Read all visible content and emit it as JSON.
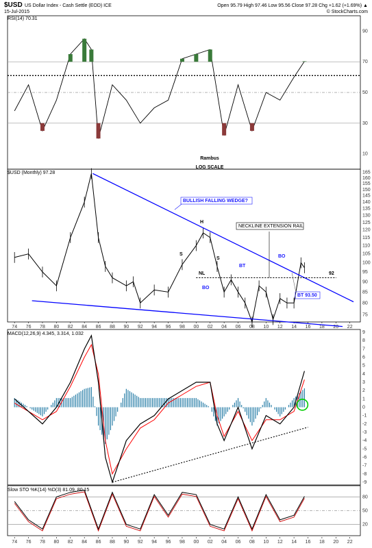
{
  "header": {
    "symbol": "$USD",
    "description": "US Dollar Index - Cash Settle (EOD) ICE",
    "date": "15-Jul-2015",
    "ohlc": "Open 95.79  High 97.46  Low 95.56  Close 97.28  Chg +1.62 (+1.69%) ▲",
    "watermark": "© StockCharts.com"
  },
  "panels": {
    "rsi": {
      "label": "RSI(14) 70.31",
      "yticks": [
        "90",
        "70",
        "50",
        "30",
        "10"
      ],
      "author": "Rambus",
      "scale_note": "LOG SCALE"
    },
    "price": {
      "label": "$USD (Monthly) 97.28",
      "yticks": [
        "165",
        "160",
        "155",
        "150",
        "145",
        "140",
        "135",
        "130",
        "125",
        "120",
        "115",
        "110",
        "105",
        "100",
        "95",
        "90",
        "85",
        "80",
        "75"
      ],
      "annotations": {
        "wedge": "BULLISH FALLING WEDGE?",
        "head": "H",
        "shoulder_left": "S",
        "shoulder_right": "S",
        "neckline": "NL",
        "neckline_rail": "NECKLINE EXTENSION RAIL",
        "bt1": "BT",
        "bo1": "BO",
        "bo2": "BO",
        "bt_price": "BT 93.50",
        "level": "92"
      }
    },
    "macd": {
      "label": "MACD(12,26,9) 4.345, 3.314, 1.032",
      "yticks": [
        "9",
        "8",
        "7",
        "6",
        "5",
        "4",
        "3",
        "2",
        "1",
        "0",
        "-1",
        "-2",
        "-3",
        "-4",
        "-5",
        "-6",
        "-7",
        "-8",
        "-9"
      ]
    },
    "sto": {
      "label": "Slow STO %K(14) %D(3) 81.09, 80.15",
      "yticks": [
        "80",
        "50",
        "20"
      ]
    }
  },
  "xaxis": {
    "labels": [
      "74",
      "76",
      "78",
      "80",
      "82",
      "84",
      "86",
      "88",
      "90",
      "92",
      "94",
      "96",
      "98",
      "00",
      "02",
      "04",
      "06",
      "08",
      "10",
      "12",
      "14",
      "16",
      "18",
      "20",
      "22"
    ]
  },
  "colors": {
    "price": "#000000",
    "wedge": "#0000ff",
    "rsi_fill": "#3a7a3a",
    "rsi_fill_low": "#8b3a3a",
    "macd_signal": "#ff0000",
    "histogram": "#2a7fa8",
    "sto_k": "#000000",
    "sto_d": "#cc0000",
    "circle": "#00cc00"
  },
  "chart_data": [
    {
      "type": "line",
      "title": "RSI(14)",
      "ylim": [
        0,
        100
      ],
      "reference_lines": [
        70,
        61,
        50,
        30
      ],
      "x": [
        1974,
        1976,
        1978,
        1980,
        1982,
        1984,
        1985,
        1986,
        1988,
        1990,
        1992,
        1994,
        1996,
        1998,
        2000,
        2002,
        2004,
        2006,
        2008,
        2010,
        2012,
        2014,
        2015.5
      ],
      "values": [
        38,
        55,
        25,
        45,
        75,
        85,
        78,
        20,
        55,
        45,
        30,
        40,
        45,
        72,
        75,
        78,
        22,
        55,
        25,
        50,
        45,
        60,
        70.31
      ]
    },
    {
      "type": "line",
      "title": "$USD (Monthly)",
      "log_scale": true,
      "ylim": [
        72,
        168
      ],
      "x": [
        1974,
        1976,
        1978,
        1980,
        1982,
        1984,
        1985,
        1986,
        1987,
        1988,
        1990,
        1991,
        1992,
        1994,
        1996,
        1998,
        2000,
        2001,
        2002,
        2003,
        2004,
        2005,
        2006,
        2007,
        2008,
        2009,
        2010,
        2011,
        2012,
        2013,
        2014,
        2015,
        2015.5
      ],
      "values": [
        103,
        105,
        95,
        88,
        115,
        140,
        164,
        115,
        98,
        92,
        88,
        90,
        80,
        86,
        85,
        99,
        110,
        118,
        115,
        98,
        85,
        91,
        85,
        80,
        72,
        88,
        85,
        73,
        82,
        80,
        80,
        100,
        97.28
      ]
    },
    {
      "type": "line",
      "title": "MACD(12,26,9)",
      "ylim": [
        -9,
        9
      ],
      "series": [
        {
          "x": [
            1974,
            1978,
            1980,
            1982,
            1984,
            1985,
            1986,
            1987,
            1988,
            1990,
            1992,
            1994,
            1996,
            1998,
            2000,
            2002,
            2003,
            2004,
            2006,
            2008,
            2010,
            2012,
            2014,
            2015.5
          ],
          "values": [
            1,
            -2,
            0,
            3,
            7,
            8.6,
            3,
            -6,
            -9,
            -4,
            -2,
            -1,
            1,
            2,
            3,
            3,
            -2,
            -4,
            0,
            -5,
            -1,
            -2,
            0,
            4.345
          ]
        },
        {
          "x": [
            1974,
            1978,
            1980,
            1982,
            1984,
            1985,
            1986,
            1987,
            1988,
            1990,
            1992,
            1994,
            1996,
            1998,
            2000,
            2002,
            2003,
            2004,
            2006,
            2008,
            2010,
            2012,
            2014,
            2015.5
          ],
          "values": [
            0.5,
            -1.5,
            -0.5,
            2.5,
            6,
            7.5,
            4,
            -4,
            -8,
            -5,
            -2.5,
            -1.5,
            0.5,
            1.5,
            2.5,
            3,
            -1,
            -3.5,
            -0.5,
            -4,
            -1.5,
            -1.5,
            -0.5,
            3.314
          ]
        }
      ],
      "trendline": {
        "from": [
          1988,
          -9
        ],
        "to": [
          2016,
          -2.4
        ]
      }
    },
    {
      "type": "line",
      "title": "Slow STO %K(14) %D(3)",
      "ylim": [
        0,
        100
      ],
      "reference_lines": [
        80,
        50,
        20
      ],
      "x": [
        1974,
        1976,
        1978,
        1980,
        1982,
        1984,
        1986,
        1988,
        1990,
        1992,
        1994,
        1996,
        1998,
        2000,
        2002,
        2004,
        2006,
        2008,
        2010,
        2012,
        2014,
        2015.5
      ],
      "values": [
        70,
        30,
        10,
        80,
        90,
        95,
        10,
        90,
        20,
        10,
        85,
        40,
        90,
        85,
        20,
        10,
        80,
        10,
        85,
        30,
        40,
        81.09
      ]
    }
  ]
}
